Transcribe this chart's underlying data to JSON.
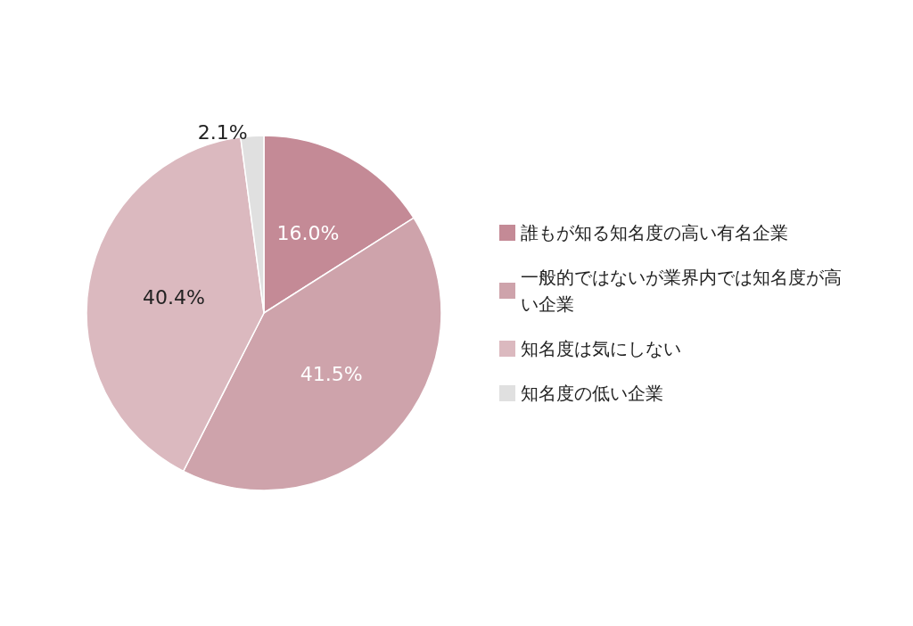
{
  "chart_data": {
    "type": "pie",
    "categories": [
      "誰もが知る知名度の高い有名企業",
      "一般的ではないが業界内では知名度が高い企業",
      "知名度は気にしない",
      "知名度の低い企業"
    ],
    "values": [
      16.0,
      41.5,
      40.4,
      2.1
    ],
    "value_labels": [
      "16.0%",
      "41.5%",
      "40.4%",
      "2.1%"
    ],
    "colors": [
      "#c48a96",
      "#cea3ab",
      "#dbb9bf",
      "#e0e0e0"
    ],
    "legend": "right"
  }
}
